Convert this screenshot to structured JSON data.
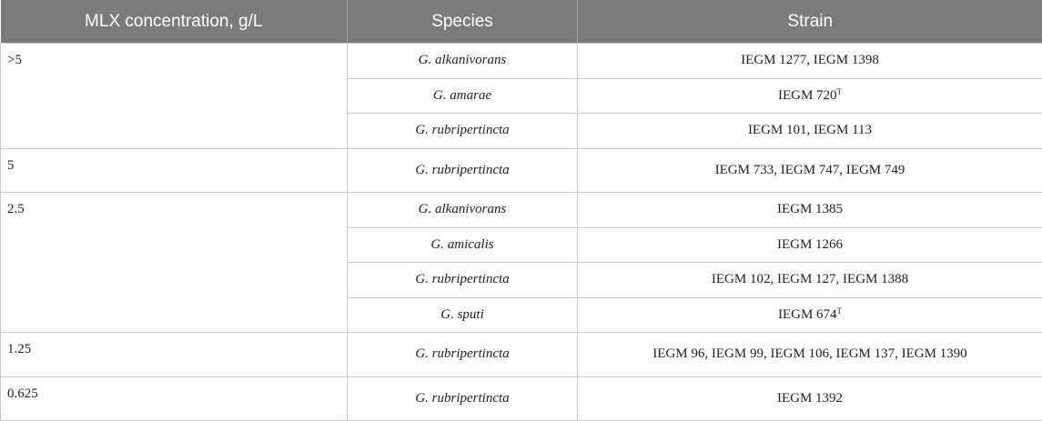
{
  "headers": {
    "concentration": "MLX concentration, g/L",
    "species": "Species",
    "strain": "Strain"
  },
  "groups": [
    {
      "concentration": ">5",
      "rows": [
        {
          "species": "G. alkanivorans",
          "strain": "IEGM 1277, IEGM 1398",
          "sup": ""
        },
        {
          "species": "G. amarae",
          "strain": "IEGM 720",
          "sup": "T"
        },
        {
          "species": "G. rubripertincta",
          "strain": "IEGM 101, IEGM 113",
          "sup": ""
        }
      ]
    },
    {
      "concentration": "5",
      "rows": [
        {
          "species": "G. rubripertincta",
          "strain": "IEGM 733, IEGM 747, IEGM 749",
          "sup": ""
        }
      ]
    },
    {
      "concentration": "2.5",
      "rows": [
        {
          "species": "G. alkanivorans",
          "strain": "IEGM 1385",
          "sup": ""
        },
        {
          "species": "G. amicalis",
          "strain": "IEGM 1266",
          "sup": ""
        },
        {
          "species": "G. rubripertincta",
          "strain": "IEGM 102, IEGM 127, IEGM 1388",
          "sup": ""
        },
        {
          "species": "G. sputi",
          "strain": "IEGM 674",
          "sup": "T"
        }
      ]
    },
    {
      "concentration": "1.25",
      "rows": [
        {
          "species": "G. rubripertincta",
          "strain": "IEGM 96, IEGM 99, IEGM 106, IEGM 137, IEGM 1390",
          "sup": ""
        }
      ]
    },
    {
      "concentration": "0.625",
      "rows": [
        {
          "species": "G. rubripertincta",
          "strain": "IEGM 1392",
          "sup": ""
        }
      ]
    }
  ]
}
